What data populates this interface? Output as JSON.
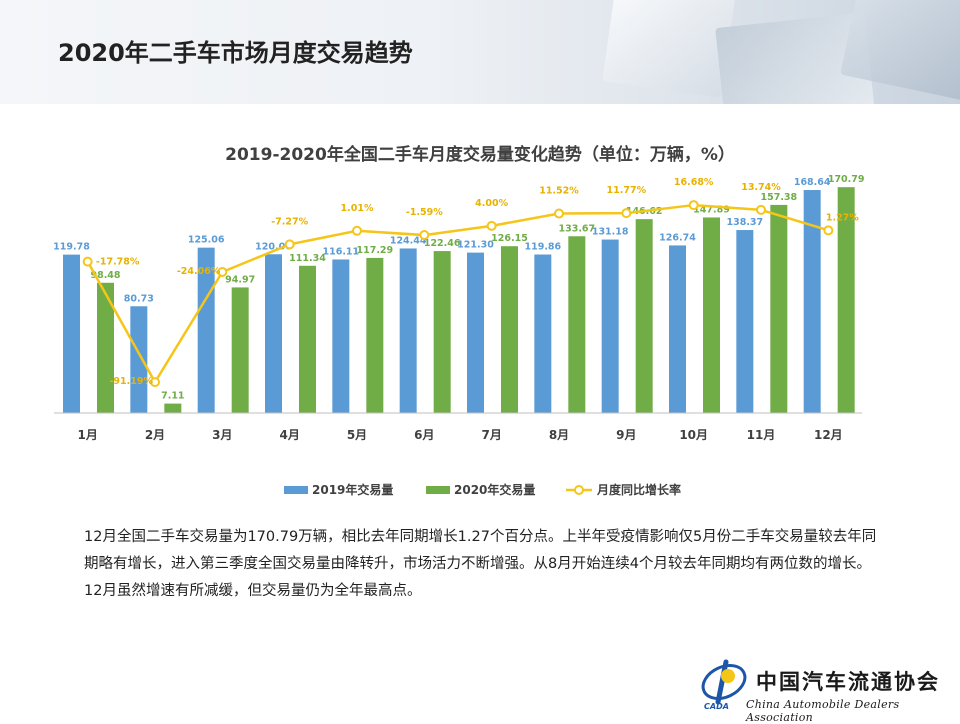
{
  "page": {
    "title": "2020年二手车市场月度交易趋势",
    "description": "12月全国二手车交易量为170.79万辆，相比去年同期增长1.27个百分点。上半年受疫情影响仅5月份二手车交易量较去年同期略有增长，进入第三季度全国交易量由降转升，市场活力不断增强。从8月开始连续4个月较去年同期均有两位数的增长。12月虽然增速有所减缓，但交易量仍为全年最高点。"
  },
  "logo": {
    "title": "中国汽车流通协会",
    "subtitle": "China Automobile Dealers Association",
    "abbr": "CADA"
  },
  "chart_data": {
    "type": "bar",
    "title": "2019-2020年全国二手车月度交易量变化趋势（单位：万辆，%）",
    "categories": [
      "1月",
      "2月",
      "3月",
      "4月",
      "5月",
      "6月",
      "7月",
      "8月",
      "9月",
      "10月",
      "11月",
      "12月"
    ],
    "series": [
      {
        "name": "2019年交易量",
        "type": "bar",
        "color": "#5b9bd5",
        "values": [
          119.78,
          80.73,
          125.06,
          120.06,
          116.11,
          124.44,
          121.3,
          119.86,
          131.18,
          126.74,
          138.37,
          168.64
        ],
        "labels": [
          "119.78",
          "80.73",
          "125.06",
          "120.06",
          "116.11",
          "124.44",
          "121.30",
          "119.86",
          "131.18",
          "126.74",
          "138.37",
          "168.64"
        ]
      },
      {
        "name": "2020年交易量",
        "type": "bar",
        "color": "#70ad47",
        "values": [
          98.48,
          7.11,
          94.97,
          111.34,
          117.29,
          122.46,
          126.15,
          133.67,
          146.62,
          147.89,
          157.38,
          170.79
        ],
        "labels": [
          "98.48",
          "7.11",
          "94.97",
          "111.34",
          "117.29",
          "122.46",
          "126.15",
          "133.67",
          "146.62",
          "147.89",
          "157.38",
          "170.79"
        ]
      },
      {
        "name": "月度同比增长率",
        "type": "line",
        "color": "#f5c518",
        "values": [
          -17.78,
          -91.19,
          -24.06,
          -7.27,
          1.01,
          -1.59,
          4.0,
          11.52,
          11.77,
          16.68,
          13.74,
          1.27
        ],
        "labels": [
          "-17.78%",
          "-91.19%",
          "-24.06%",
          "-7.27%",
          "1.01%",
          "-1.59%",
          "4.00%",
          "11.52%",
          "11.77%",
          "16.68%",
          "13.74%",
          "1.27%"
        ]
      }
    ],
    "bar_axis_range": [
      0,
      180
    ],
    "line_axis_range": [
      -110,
      35
    ],
    "grid": false,
    "legend_position": "bottom"
  }
}
